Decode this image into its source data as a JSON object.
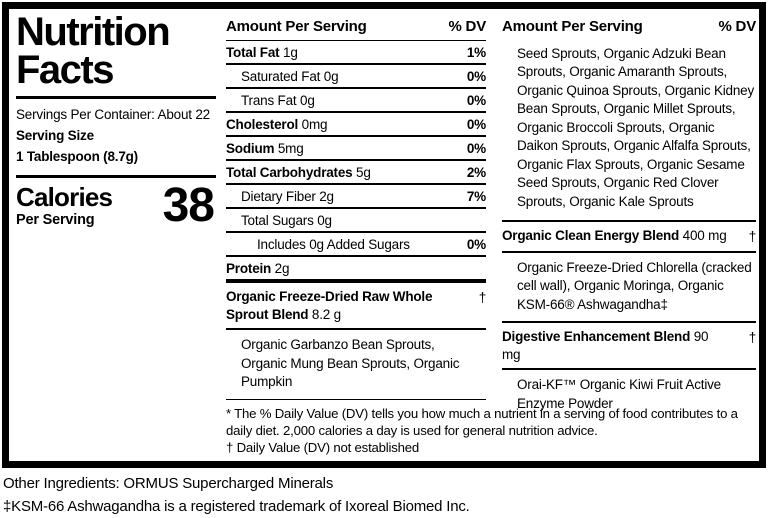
{
  "colors": {
    "ink": "#000000",
    "background": "#ffffff"
  },
  "left": {
    "title_line1": "Nutrition",
    "title_line2": "Facts",
    "servings_per_container": "Servings Per Container: About 22",
    "serving_size_label": "Serving Size",
    "serving_size_value": "1 Tablespoon (8.7g)",
    "calories_label": "Calories",
    "calories_sub": "Per Serving",
    "calories_value": "38"
  },
  "col2": {
    "header_left": "Amount Per Serving",
    "header_right": "% DV",
    "rows": [
      {
        "name": "Total Fat",
        "amount": "1g",
        "dv": "1%"
      },
      {
        "name": "Saturated Fat",
        "amount": "0g",
        "dv": "0%"
      },
      {
        "name": "Trans Fat",
        "amount": "0g",
        "dv": "0%"
      },
      {
        "name": "Cholesterol",
        "amount": "0mg",
        "dv": "0%"
      },
      {
        "name": "Sodium",
        "amount": "5mg",
        "dv": "0%"
      },
      {
        "name": "Total Carbohydrates",
        "amount": "5g",
        "dv": "2%"
      },
      {
        "name": "Dietary Fiber",
        "amount": "2g",
        "dv": "7%"
      },
      {
        "name": "Total Sugars",
        "amount": "0g",
        "dv": ""
      },
      {
        "name": "Includes 0g Added Sugars",
        "amount": "",
        "dv": "0%"
      },
      {
        "name": "Protein",
        "amount": "2g",
        "dv": ""
      }
    ],
    "blend": {
      "name": "Organic Freeze-Dried Raw Whole Sprout Blend",
      "amount": "8.2 g",
      "dv": "†",
      "ingredients": "Organic Garbanzo Bean Sprouts, Organic Mung Bean Sprouts, Organic Pumpkin"
    }
  },
  "col3": {
    "header_left": "Amount Per Serving",
    "header_right": "% DV",
    "continuation": "Seed Sprouts, Organic Adzuki Bean Sprouts, Organic Amaranth Sprouts, Organic Quinoa Sprouts, Organic Kidney Bean Sprouts, Organic Millet Sprouts, Organic Broccoli Sprouts, Organic Daikon Sprouts, Organic Alfalfa Sprouts, Organic Flax Sprouts, Organic Sesame Seed Sprouts, Organic Red Clover Sprouts, Organic Kale Sprouts",
    "blends": [
      {
        "name": "Organic Clean Energy Blend",
        "amount": "400 mg",
        "dv": "†",
        "ingredients": "Organic Freeze-Dried Chlorella (cracked cell wall), Organic Moringa, Organic KSM-66® Ashwagandha‡"
      },
      {
        "name": "Digestive Enhancement Blend",
        "amount": "90 mg",
        "dv": "†",
        "ingredients": "Orai-KF™ Organic Kiwi Fruit Active Enzyme Powder"
      }
    ]
  },
  "footnote": {
    "line1": "* The % Daily Value (DV) tells you how much a nutrient in a serving of food contributes to a daily diet. 2,000 calories a day is used for general nutrition advice.",
    "line2": "† Daily Value (DV) not established"
  },
  "bottom": {
    "other_ingredients": "Other Ingredients: ORMUS Supercharged Minerals",
    "trademark_note": "‡KSM-66 Ashwagandha is a registered trademark of Ixoreal Biomed Inc."
  }
}
